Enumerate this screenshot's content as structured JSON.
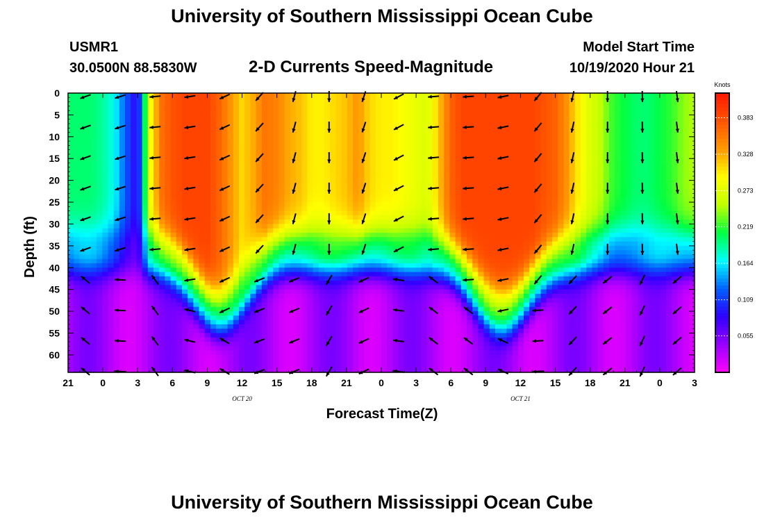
{
  "header": {
    "title": "University of Southern Mississippi Ocean Cube",
    "station": "USMR1",
    "coords": "30.0500N 88.5830W",
    "subtitle": "2-D Currents Speed-Magnitude",
    "model_start_label": "Model Start Time",
    "model_start_value": "10/19/2020 Hour 21"
  },
  "footer": {
    "title": "University of Southern Mississippi Ocean Cube"
  },
  "chart_data": {
    "type": "heatmap",
    "title": "2-D Currents Speed-Magnitude",
    "xlabel": "Forecast Time(Z)",
    "ylabel": "Depth (ft)",
    "x_tick_labels": [
      "21",
      "0",
      "3",
      "6",
      "9",
      "12",
      "15",
      "18",
      "21",
      "0",
      "3",
      "6",
      "9",
      "12",
      "15",
      "18",
      "21",
      "0",
      "3"
    ],
    "x_range_hours": [
      0,
      54
    ],
    "date_labels": [
      {
        "label": "OCT 20",
        "hour": 15
      },
      {
        "label": "OCT 21",
        "hour": 39
      }
    ],
    "y_ticks": [
      0,
      5,
      10,
      15,
      20,
      25,
      30,
      35,
      40,
      45,
      50,
      55,
      60
    ],
    "y_range": [
      0,
      64
    ],
    "y_inverted": true,
    "colorbar": {
      "unit": "Knots",
      "ticks": [
        "0.055",
        "0.109",
        "0.164",
        "0.219",
        "0.273",
        "0.328",
        "0.383"
      ],
      "range": [
        0.0,
        0.42
      ],
      "colors": [
        "#ff00ff",
        "#9a00ff",
        "#2f00ff",
        "#0060ff",
        "#00ffff",
        "#00ff40",
        "#c0ff00",
        "#ffff00",
        "#ff9a00",
        "#ff5500",
        "#ff1800"
      ]
    },
    "surface_speed_by_hour": [
      0.2,
      0.2,
      0.2,
      0.19,
      0.17,
      0.12,
      0.08,
      0.28,
      0.36,
      0.38,
      0.39,
      0.39,
      0.39,
      0.37,
      0.34,
      0.31,
      0.33,
      0.36,
      0.35,
      0.33,
      0.32,
      0.3,
      0.3,
      0.31,
      0.32,
      0.34,
      0.31,
      0.3,
      0.3,
      0.29,
      0.28,
      0.27,
      0.32,
      0.37,
      0.39,
      0.39,
      0.39,
      0.39,
      0.39,
      0.39,
      0.39,
      0.38,
      0.37,
      0.34,
      0.3,
      0.27,
      0.25,
      0.22,
      0.21,
      0.2,
      0.2,
      0.21,
      0.22,
      0.24,
      0.25
    ],
    "current_direction_deg_by_hour": [
      250,
      250,
      250,
      250,
      250,
      255,
      260,
      265,
      265,
      264,
      262,
      260,
      258,
      250,
      240,
      230,
      225,
      220,
      210,
      200,
      190,
      180,
      180,
      180,
      185,
      190,
      205,
      220,
      235,
      250,
      262,
      265,
      266,
      266,
      266,
      266,
      266,
      262,
      255,
      240,
      225,
      215,
      205,
      195,
      190,
      182,
      180,
      180,
      180,
      180,
      178,
      176,
      174,
      172,
      170
    ]
  }
}
